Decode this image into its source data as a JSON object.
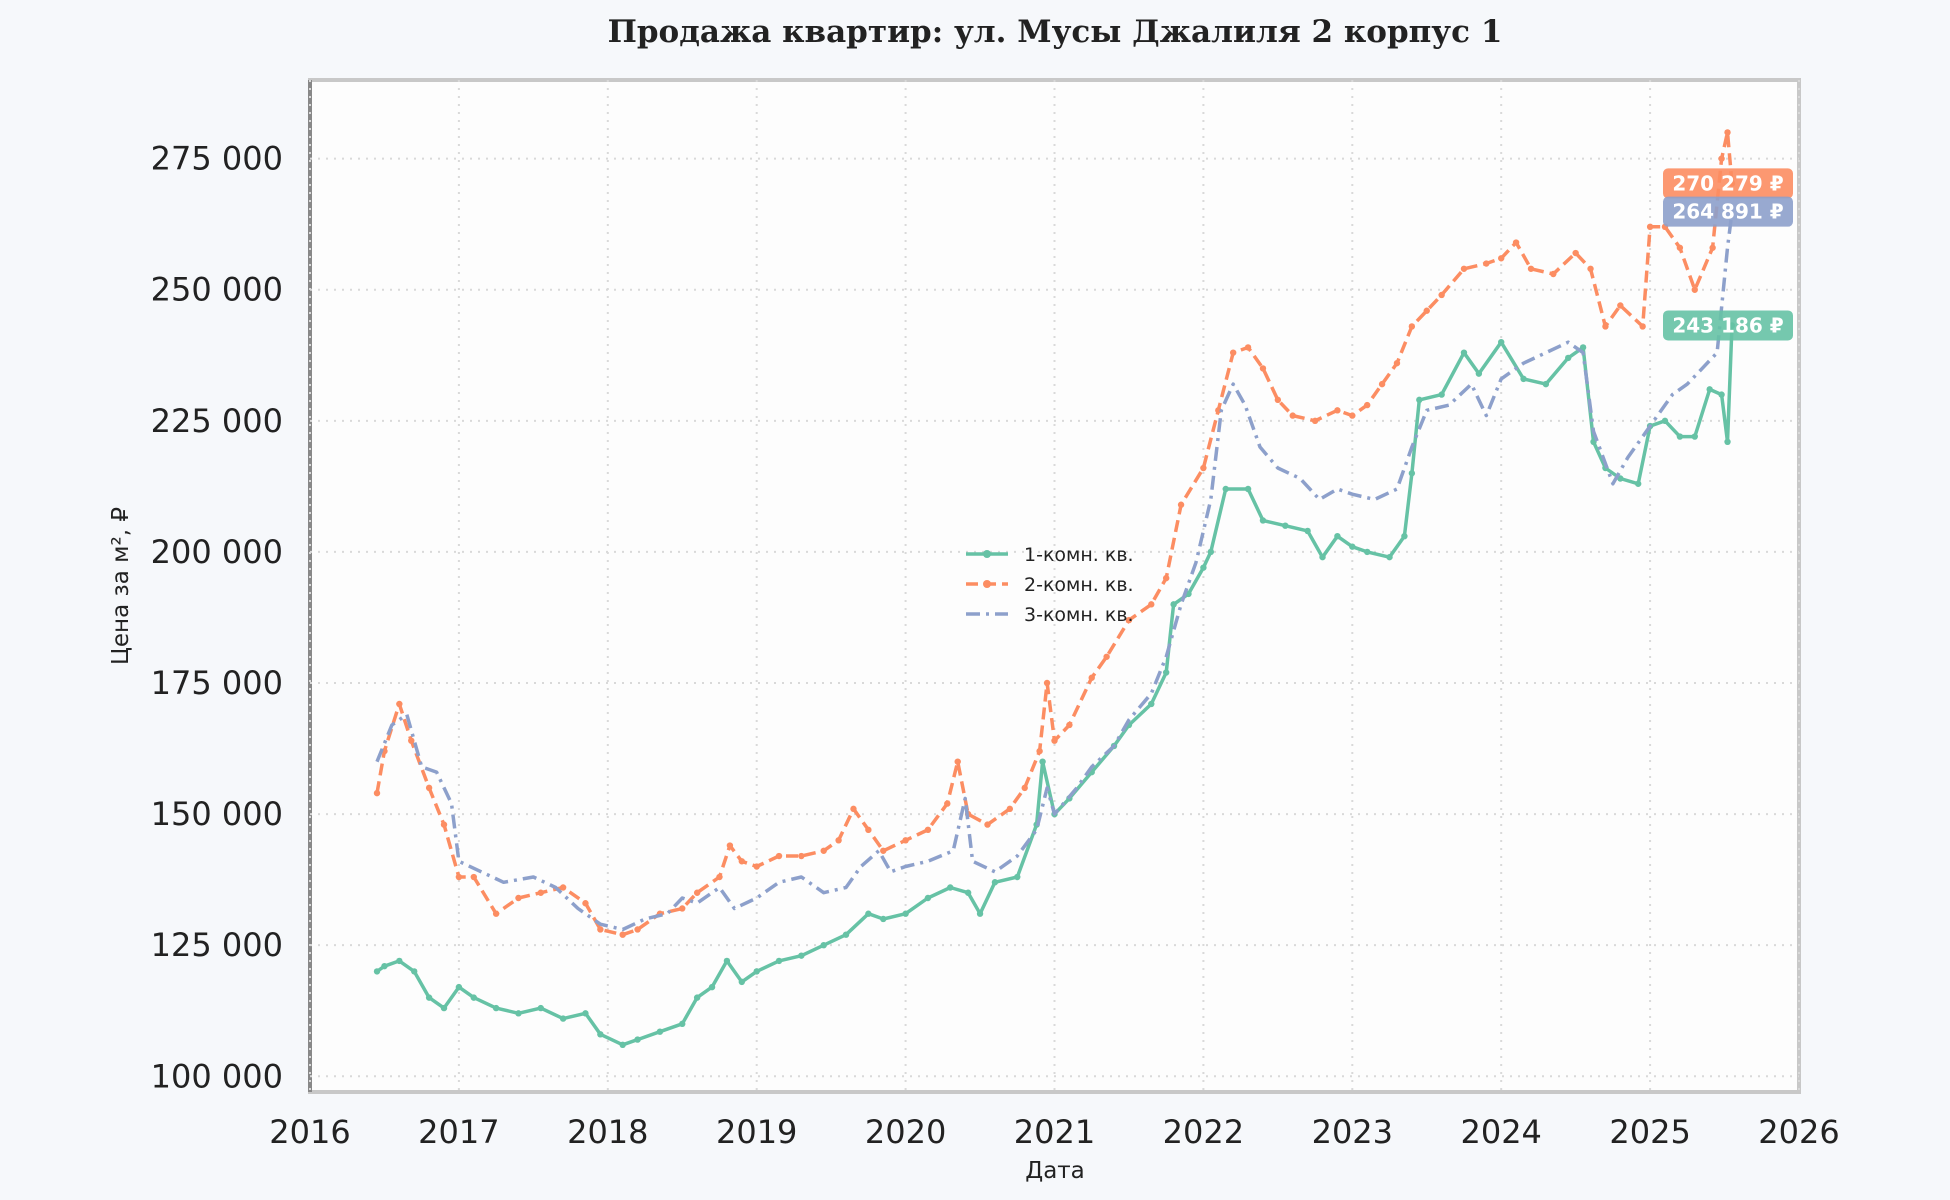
{
  "chart_data": {
    "type": "line",
    "title": "Продажа квартир: ул. Мусы Джалиля 2 корпус 1",
    "xlabel": "Дата",
    "ylabel": "Цена за м², ₽",
    "xlim": [
      2016.0,
      2026.0
    ],
    "ylim": [
      97000,
      290000
    ],
    "x_ticks": [
      "2016",
      "2017",
      "2018",
      "2019",
      "2020",
      "2021",
      "2022",
      "2023",
      "2024",
      "2025",
      "2026"
    ],
    "y_ticks": [
      {
        "value": 100000,
        "label": "100 000"
      },
      {
        "value": 125000,
        "label": "125 000"
      },
      {
        "value": 150000,
        "label": "150 000"
      },
      {
        "value": 175000,
        "label": "175 000"
      },
      {
        "value": 200000,
        "label": "200 000"
      },
      {
        "value": 225000,
        "label": "225 000"
      },
      {
        "value": 250000,
        "label": "250 000"
      },
      {
        "value": 275000,
        "label": "275 000"
      }
    ],
    "grid": true,
    "legend_position": "center",
    "series": [
      {
        "name": "1-комн. кв.",
        "color": "#66c2a5",
        "dash": "solid",
        "last_value_label": "243 186 ₽",
        "points": [
          [
            2016.45,
            120000
          ],
          [
            2016.5,
            121000
          ],
          [
            2016.6,
            122000
          ],
          [
            2016.7,
            120000
          ],
          [
            2016.8,
            115000
          ],
          [
            2016.9,
            113000
          ],
          [
            2017.0,
            117000
          ],
          [
            2017.1,
            115000
          ],
          [
            2017.25,
            113000
          ],
          [
            2017.4,
            112000
          ],
          [
            2017.55,
            113000
          ],
          [
            2017.7,
            111000
          ],
          [
            2017.85,
            112000
          ],
          [
            2017.95,
            108000
          ],
          [
            2018.1,
            106000
          ],
          [
            2018.2,
            107000
          ],
          [
            2018.35,
            108500
          ],
          [
            2018.5,
            110000
          ],
          [
            2018.6,
            115000
          ],
          [
            2018.7,
            117000
          ],
          [
            2018.8,
            122000
          ],
          [
            2018.9,
            118000
          ],
          [
            2019.0,
            120000
          ],
          [
            2019.15,
            122000
          ],
          [
            2019.3,
            123000
          ],
          [
            2019.45,
            125000
          ],
          [
            2019.6,
            127000
          ],
          [
            2019.75,
            131000
          ],
          [
            2019.85,
            130000
          ],
          [
            2020.0,
            131000
          ],
          [
            2020.15,
            134000
          ],
          [
            2020.3,
            136000
          ],
          [
            2020.42,
            135000
          ],
          [
            2020.5,
            131000
          ],
          [
            2020.6,
            137000
          ],
          [
            2020.75,
            138000
          ],
          [
            2020.88,
            148000
          ],
          [
            2020.92,
            160000
          ],
          [
            2021.0,
            150000
          ],
          [
            2021.1,
            153000
          ],
          [
            2021.25,
            158000
          ],
          [
            2021.4,
            163000
          ],
          [
            2021.5,
            167000
          ],
          [
            2021.65,
            171000
          ],
          [
            2021.75,
            177000
          ],
          [
            2021.8,
            190000
          ],
          [
            2021.9,
            192000
          ],
          [
            2022.0,
            197000
          ],
          [
            2022.05,
            200000
          ],
          [
            2022.15,
            212000
          ],
          [
            2022.3,
            212000
          ],
          [
            2022.4,
            206000
          ],
          [
            2022.55,
            205000
          ],
          [
            2022.7,
            204000
          ],
          [
            2022.8,
            199000
          ],
          [
            2022.9,
            203000
          ],
          [
            2023.0,
            201000
          ],
          [
            2023.1,
            200000
          ],
          [
            2023.25,
            199000
          ],
          [
            2023.35,
            203000
          ],
          [
            2023.4,
            215000
          ],
          [
            2023.45,
            229000
          ],
          [
            2023.6,
            230000
          ],
          [
            2023.75,
            238000
          ],
          [
            2023.85,
            234000
          ],
          [
            2024.0,
            240000
          ],
          [
            2024.15,
            233000
          ],
          [
            2024.3,
            232000
          ],
          [
            2024.45,
            237000
          ],
          [
            2024.55,
            239000
          ],
          [
            2024.62,
            221000
          ],
          [
            2024.7,
            216000
          ],
          [
            2024.8,
            214000
          ],
          [
            2024.92,
            213000
          ],
          [
            2025.0,
            224000
          ],
          [
            2025.1,
            225000
          ],
          [
            2025.2,
            222000
          ],
          [
            2025.3,
            222000
          ],
          [
            2025.4,
            231000
          ],
          [
            2025.48,
            230000
          ],
          [
            2025.52,
            221000
          ],
          [
            2025.55,
            243186
          ]
        ]
      },
      {
        "name": "2-комн. кв.",
        "color": "#fc8d62",
        "dash": "dashed",
        "last_value_label": "270 279 ₽",
        "points": [
          [
            2016.45,
            154000
          ],
          [
            2016.5,
            162000
          ],
          [
            2016.6,
            171000
          ],
          [
            2016.68,
            164000
          ],
          [
            2016.8,
            155000
          ],
          [
            2016.9,
            148000
          ],
          [
            2017.0,
            138000
          ],
          [
            2017.1,
            138000
          ],
          [
            2017.25,
            131000
          ],
          [
            2017.4,
            134000
          ],
          [
            2017.55,
            135000
          ],
          [
            2017.7,
            136000
          ],
          [
            2017.85,
            133000
          ],
          [
            2017.95,
            128000
          ],
          [
            2018.1,
            127000
          ],
          [
            2018.2,
            128000
          ],
          [
            2018.35,
            131000
          ],
          [
            2018.5,
            132000
          ],
          [
            2018.6,
            135000
          ],
          [
            2018.75,
            138000
          ],
          [
            2018.82,
            144000
          ],
          [
            2018.9,
            141000
          ],
          [
            2019.0,
            140000
          ],
          [
            2019.15,
            142000
          ],
          [
            2019.3,
            142000
          ],
          [
            2019.45,
            143000
          ],
          [
            2019.55,
            145000
          ],
          [
            2019.65,
            151000
          ],
          [
            2019.75,
            147000
          ],
          [
            2019.85,
            143000
          ],
          [
            2020.0,
            145000
          ],
          [
            2020.15,
            147000
          ],
          [
            2020.28,
            152000
          ],
          [
            2020.35,
            160000
          ],
          [
            2020.42,
            150000
          ],
          [
            2020.55,
            148000
          ],
          [
            2020.7,
            151000
          ],
          [
            2020.8,
            155000
          ],
          [
            2020.9,
            162000
          ],
          [
            2020.95,
            175000
          ],
          [
            2021.0,
            164000
          ],
          [
            2021.1,
            167000
          ],
          [
            2021.25,
            176000
          ],
          [
            2021.35,
            180000
          ],
          [
            2021.5,
            187000
          ],
          [
            2021.65,
            190000
          ],
          [
            2021.75,
            195000
          ],
          [
            2021.85,
            209000
          ],
          [
            2022.0,
            216000
          ],
          [
            2022.1,
            227000
          ],
          [
            2022.2,
            238000
          ],
          [
            2022.3,
            239000
          ],
          [
            2022.4,
            235000
          ],
          [
            2022.5,
            229000
          ],
          [
            2022.6,
            226000
          ],
          [
            2022.75,
            225000
          ],
          [
            2022.9,
            227000
          ],
          [
            2023.0,
            226000
          ],
          [
            2023.1,
            228000
          ],
          [
            2023.2,
            232000
          ],
          [
            2023.3,
            236000
          ],
          [
            2023.4,
            243000
          ],
          [
            2023.5,
            246000
          ],
          [
            2023.6,
            249000
          ],
          [
            2023.75,
            254000
          ],
          [
            2023.9,
            255000
          ],
          [
            2024.0,
            256000
          ],
          [
            2024.1,
            259000
          ],
          [
            2024.2,
            254000
          ],
          [
            2024.35,
            253000
          ],
          [
            2024.5,
            257000
          ],
          [
            2024.6,
            254000
          ],
          [
            2024.7,
            243000
          ],
          [
            2024.8,
            247000
          ],
          [
            2024.95,
            243000
          ],
          [
            2025.0,
            262000
          ],
          [
            2025.1,
            262000
          ],
          [
            2025.2,
            258000
          ],
          [
            2025.3,
            250000
          ],
          [
            2025.42,
            258000
          ],
          [
            2025.48,
            275000
          ],
          [
            2025.52,
            280000
          ],
          [
            2025.55,
            270279
          ]
        ]
      },
      {
        "name": "3-комн. кв.",
        "color": "#8da0cb",
        "dash": "dashdot",
        "last_value_label": "264 891 ₽",
        "points": [
          [
            2016.45,
            160000
          ],
          [
            2016.55,
            167000
          ],
          [
            2016.65,
            169000
          ],
          [
            2016.75,
            159000
          ],
          [
            2016.85,
            158000
          ],
          [
            2016.95,
            152000
          ],
          [
            2017.0,
            141000
          ],
          [
            2017.15,
            139000
          ],
          [
            2017.3,
            137000
          ],
          [
            2017.5,
            138000
          ],
          [
            2017.65,
            136000
          ],
          [
            2017.8,
            132000
          ],
          [
            2017.95,
            129000
          ],
          [
            2018.1,
            128000
          ],
          [
            2018.25,
            130000
          ],
          [
            2018.4,
            131000
          ],
          [
            2018.5,
            134000
          ],
          [
            2018.6,
            133000
          ],
          [
            2018.75,
            136000
          ],
          [
            2018.85,
            132000
          ],
          [
            2019.0,
            134000
          ],
          [
            2019.15,
            137000
          ],
          [
            2019.3,
            138000
          ],
          [
            2019.45,
            135000
          ],
          [
            2019.6,
            136000
          ],
          [
            2019.7,
            140000
          ],
          [
            2019.82,
            143000
          ],
          [
            2019.9,
            139000
          ],
          [
            2020.0,
            140000
          ],
          [
            2020.15,
            141000
          ],
          [
            2020.32,
            143000
          ],
          [
            2020.4,
            153000
          ],
          [
            2020.45,
            141000
          ],
          [
            2020.6,
            139000
          ],
          [
            2020.75,
            142000
          ],
          [
            2020.88,
            147000
          ],
          [
            2020.95,
            155000
          ],
          [
            2021.0,
            150000
          ],
          [
            2021.15,
            155000
          ],
          [
            2021.25,
            159000
          ],
          [
            2021.4,
            163000
          ],
          [
            2021.5,
            168000
          ],
          [
            2021.65,
            173000
          ],
          [
            2021.75,
            180000
          ],
          [
            2021.85,
            190000
          ],
          [
            2021.95,
            198000
          ],
          [
            2022.05,
            210000
          ],
          [
            2022.12,
            227000
          ],
          [
            2022.2,
            232000
          ],
          [
            2022.28,
            228000
          ],
          [
            2022.38,
            220000
          ],
          [
            2022.5,
            216000
          ],
          [
            2022.65,
            214000
          ],
          [
            2022.78,
            210000
          ],
          [
            2022.9,
            212000
          ],
          [
            2023.0,
            211000
          ],
          [
            2023.15,
            210000
          ],
          [
            2023.3,
            212000
          ],
          [
            2023.4,
            220000
          ],
          [
            2023.5,
            227000
          ],
          [
            2023.65,
            228000
          ],
          [
            2023.8,
            232000
          ],
          [
            2023.9,
            226000
          ],
          [
            2024.0,
            233000
          ],
          [
            2024.15,
            236000
          ],
          [
            2024.3,
            238000
          ],
          [
            2024.45,
            240000
          ],
          [
            2024.55,
            238000
          ],
          [
            2024.62,
            223000
          ],
          [
            2024.75,
            213000
          ],
          [
            2024.85,
            218000
          ],
          [
            2024.95,
            222000
          ],
          [
            2025.05,
            226000
          ],
          [
            2025.15,
            230000
          ],
          [
            2025.25,
            232000
          ],
          [
            2025.35,
            235000
          ],
          [
            2025.45,
            238000
          ],
          [
            2025.52,
            258000
          ],
          [
            2025.55,
            264891
          ]
        ]
      }
    ]
  }
}
